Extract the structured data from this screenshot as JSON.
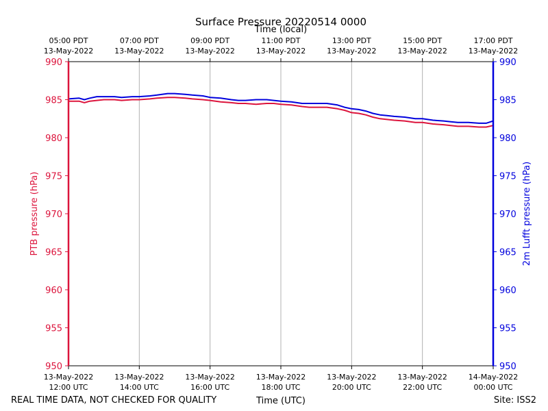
{
  "chart_data": {
    "type": "line",
    "title": "Surface Pressure 20220514 0000",
    "top_xlabel": "Time (local)",
    "xlabel": "Time (UTC)",
    "ylabel_left": "PTB pressure (hPa)",
    "ylabel_right": "2m Lufft pressure (hPa)",
    "footer_left": "REAL TIME DATA, NOT CHECKED FOR QUALITY",
    "footer_right": "Site: ISS2",
    "ylim": [
      950,
      990
    ],
    "y_ticks": [
      "950",
      "955",
      "960",
      "965",
      "970",
      "975",
      "980",
      "985",
      "990"
    ],
    "xlim_hours": [
      12,
      24
    ],
    "grid": "vertical",
    "bottom_ticks": [
      {
        "hour": 12,
        "date": "13-May-2022",
        "time": "12:00 UTC"
      },
      {
        "hour": 14,
        "date": "13-May-2022",
        "time": "14:00 UTC"
      },
      {
        "hour": 16,
        "date": "13-May-2022",
        "time": "16:00 UTC"
      },
      {
        "hour": 18,
        "date": "13-May-2022",
        "time": "18:00 UTC"
      },
      {
        "hour": 20,
        "date": "13-May-2022",
        "time": "20:00 UTC"
      },
      {
        "hour": 22,
        "date": "13-May-2022",
        "time": "22:00 UTC"
      },
      {
        "hour": 24,
        "date": "14-May-2022",
        "time": "00:00 UTC"
      }
    ],
    "top_ticks": [
      {
        "hour": 12,
        "time": "05:00 PDT",
        "date": "13-May-2022"
      },
      {
        "hour": 14,
        "time": "07:00 PDT",
        "date": "13-May-2022"
      },
      {
        "hour": 16,
        "time": "09:00 PDT",
        "date": "13-May-2022"
      },
      {
        "hour": 18,
        "time": "11:00 PDT",
        "date": "13-May-2022"
      },
      {
        "hour": 20,
        "time": "13:00 PDT",
        "date": "13-May-2022"
      },
      {
        "hour": 22,
        "time": "15:00 PDT",
        "date": "13-May-2022"
      },
      {
        "hour": 24,
        "time": "17:00 PDT",
        "date": "13-May-2022"
      }
    ],
    "series": [
      {
        "axis": "left",
        "color": "#dc143c",
        "x": [
          12.0,
          12.3,
          12.45,
          12.6,
          12.8,
          13.0,
          13.3,
          13.5,
          13.8,
          14.0,
          14.3,
          14.5,
          14.8,
          15.0,
          15.3,
          15.5,
          15.8,
          16.0,
          16.3,
          16.6,
          16.8,
          17.0,
          17.3,
          17.6,
          17.8,
          18.0,
          18.3,
          18.6,
          18.8,
          19.0,
          19.3,
          19.6,
          19.8,
          20.0,
          20.2,
          20.4,
          20.6,
          20.8,
          21.0,
          21.2,
          21.5,
          21.8,
          22.0,
          22.3,
          22.6,
          22.8,
          23.0,
          23.3,
          23.6,
          23.8,
          24.0
        ],
        "values": [
          984.8,
          984.8,
          984.6,
          984.8,
          984.9,
          985.0,
          985.0,
          984.9,
          985.0,
          985.0,
          985.1,
          985.2,
          985.3,
          985.3,
          985.2,
          985.1,
          985.0,
          984.9,
          984.7,
          984.6,
          984.5,
          984.5,
          984.4,
          984.5,
          984.5,
          984.4,
          984.3,
          984.1,
          984.0,
          984.0,
          984.0,
          983.8,
          983.6,
          983.3,
          983.2,
          983.0,
          982.7,
          982.5,
          982.4,
          982.3,
          982.2,
          982.0,
          982.0,
          981.8,
          981.7,
          981.6,
          981.5,
          981.5,
          981.4,
          981.4,
          981.6
        ]
      },
      {
        "axis": "right",
        "color": "#0000dd",
        "x": [
          12.0,
          12.3,
          12.45,
          12.6,
          12.8,
          13.0,
          13.3,
          13.5,
          13.8,
          14.0,
          14.3,
          14.5,
          14.8,
          15.0,
          15.3,
          15.5,
          15.8,
          16.0,
          16.3,
          16.6,
          16.8,
          17.0,
          17.3,
          17.6,
          17.8,
          18.0,
          18.3,
          18.6,
          18.8,
          19.0,
          19.3,
          19.6,
          19.8,
          20.0,
          20.2,
          20.4,
          20.6,
          20.8,
          21.0,
          21.2,
          21.5,
          21.8,
          22.0,
          22.3,
          22.6,
          22.8,
          23.0,
          23.3,
          23.6,
          23.8,
          24.0
        ],
        "values": [
          985.1,
          985.2,
          985.0,
          985.2,
          985.4,
          985.4,
          985.4,
          985.3,
          985.4,
          985.4,
          985.5,
          985.6,
          985.8,
          985.8,
          985.7,
          985.6,
          985.5,
          985.3,
          985.2,
          985.0,
          984.9,
          984.9,
          985.0,
          985.0,
          984.9,
          984.8,
          984.7,
          984.5,
          984.5,
          984.5,
          984.5,
          984.3,
          984.0,
          983.8,
          983.7,
          983.5,
          983.2,
          983.0,
          982.9,
          982.8,
          982.7,
          982.5,
          982.5,
          982.3,
          982.2,
          982.1,
          982.0,
          982.0,
          981.9,
          981.9,
          982.2
        ]
      }
    ]
  }
}
